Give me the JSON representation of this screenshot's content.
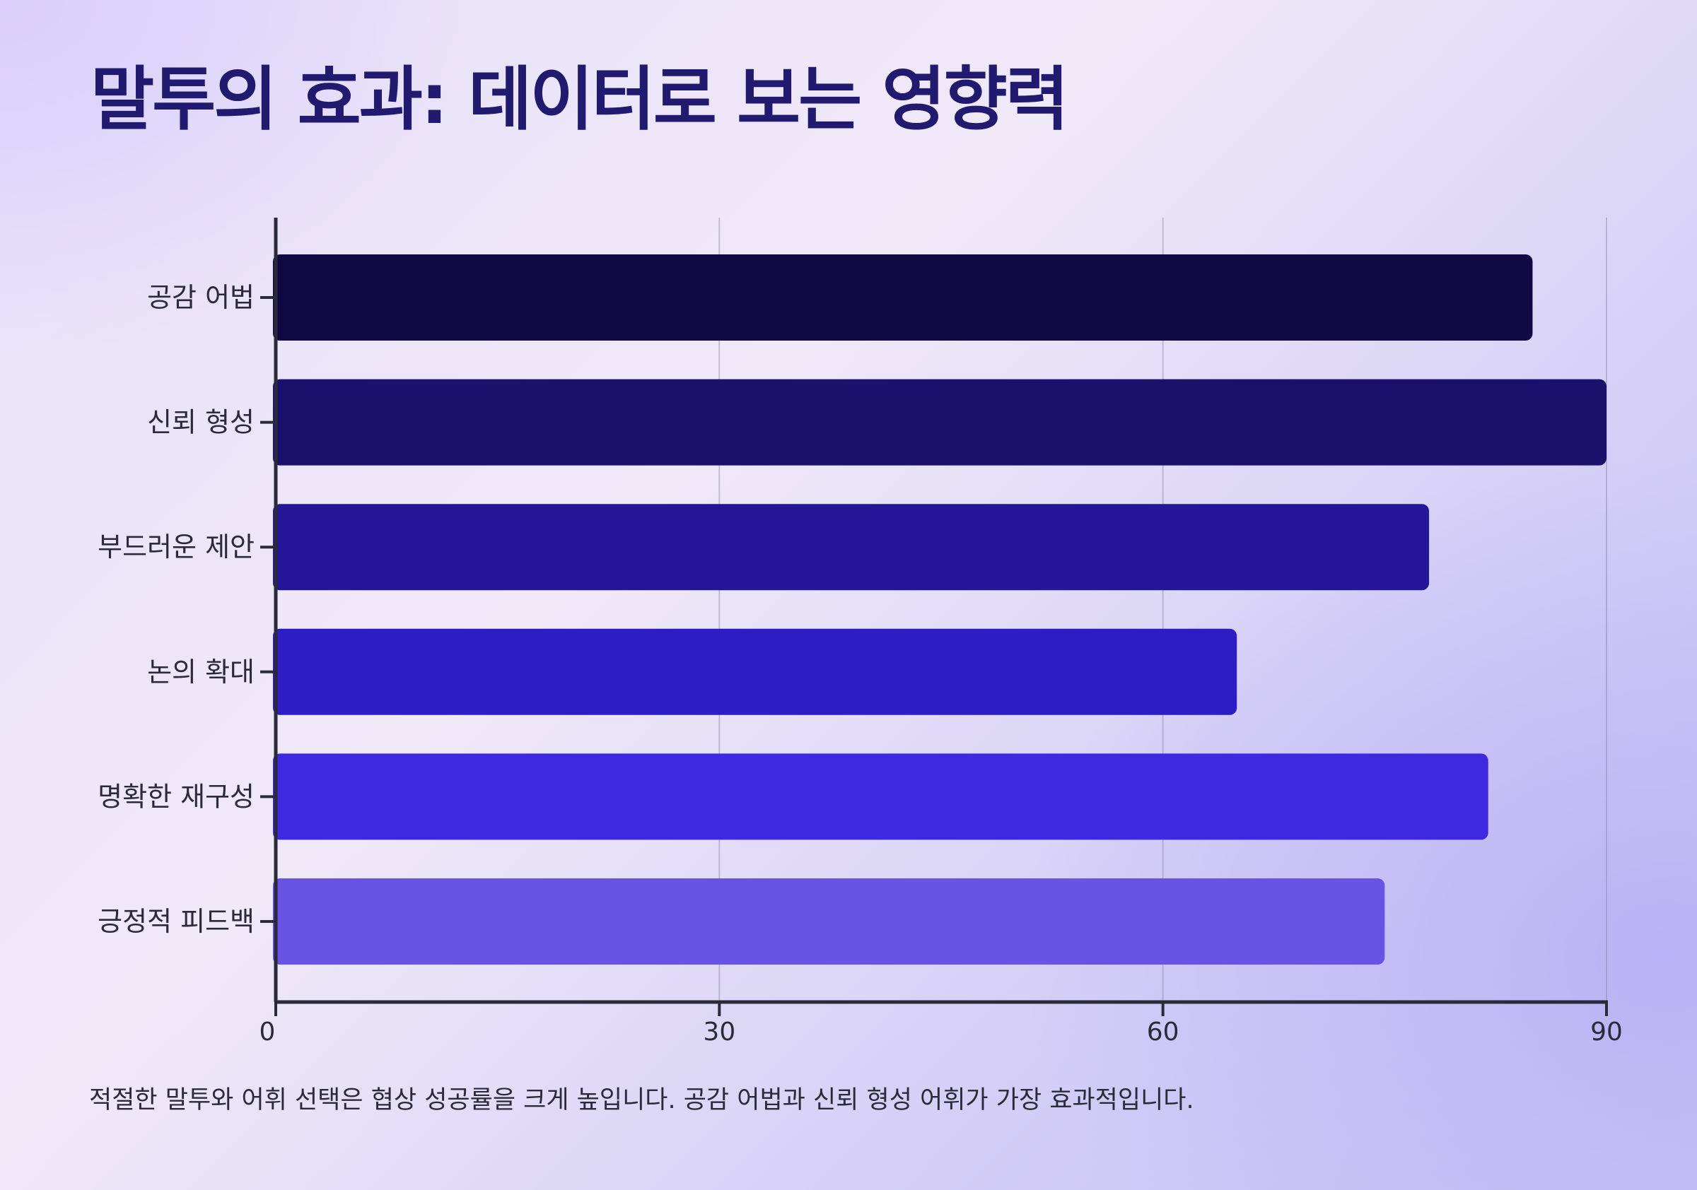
{
  "title": "말투의 효과: 데이터로 보는 영향력",
  "caption": "적절한 말투와 어휘 선택은 협상 성공률을 크게 높입니다. 공감 어법과 신뢰 형성 어휘가 가장 효과적입니다.",
  "chart_data": {
    "type": "bar",
    "orientation": "horizontal",
    "categories": [
      "공감 어법",
      "신뢰 형성",
      "부드러운 제안",
      "논의 확대",
      "명확한 재구성",
      "긍정적 피드백"
    ],
    "values": [
      85,
      90,
      78,
      65,
      82,
      75
    ],
    "colors": [
      "#110a42",
      "#1b106c",
      "#241696",
      "#2e1cc4",
      "#3f29e0",
      "#6853e6"
    ],
    "xlim": [
      0,
      90
    ],
    "xticks": [
      0,
      30,
      60,
      90
    ],
    "xlabel": "",
    "ylabel": "",
    "grid": "vertical",
    "legend": "none"
  }
}
